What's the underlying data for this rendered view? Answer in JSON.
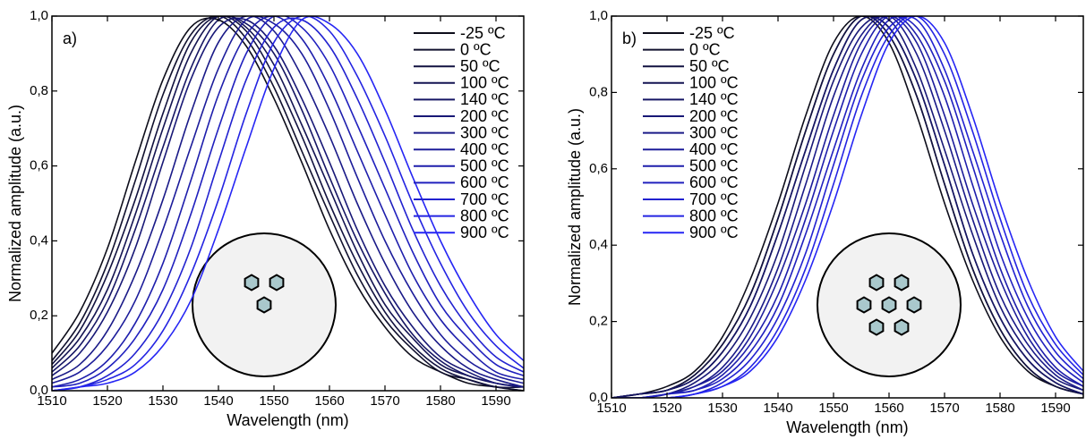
{
  "chart_data": [
    {
      "type": "line",
      "panel_label": "a)",
      "xlabel": "Wavelength (nm)",
      "ylabel": "Normalized amplitude (a.u.)",
      "x": [
        1510,
        1515,
        1520,
        1525,
        1530,
        1535,
        1540,
        1545,
        1550,
        1555,
        1560,
        1565,
        1570,
        1575,
        1580,
        1585,
        1590,
        1595
      ],
      "xlim": [
        1510,
        1595
      ],
      "xticks": [
        1510,
        1520,
        1530,
        1540,
        1550,
        1560,
        1570,
        1580,
        1590
      ],
      "ylim": [
        0,
        1
      ],
      "yticks": [
        {
          "value": 0,
          "label": "0,0"
        },
        {
          "value": 0.2,
          "label": "0,2"
        },
        {
          "value": 0.4,
          "label": "0,4"
        },
        {
          "value": 0.6,
          "label": "0,6"
        },
        {
          "value": 0.8,
          "label": "0,8"
        },
        {
          "value": 1,
          "label": "1,0"
        }
      ],
      "series": [
        {
          "name": "-25 ºC",
          "color": "#0d0d1a",
          "values": [
            0.1,
            0.21,
            0.38,
            0.61,
            0.83,
            0.97,
            0.99,
            0.92,
            0.78,
            0.61,
            0.43,
            0.28,
            0.17,
            0.09,
            0.05,
            0.02,
            0.01,
            0.0
          ]
        },
        {
          "name": "0 ºC",
          "color": "#10102e",
          "values": [
            0.08,
            0.18,
            0.34,
            0.56,
            0.79,
            0.95,
            1.0,
            0.94,
            0.81,
            0.64,
            0.47,
            0.31,
            0.19,
            0.11,
            0.05,
            0.03,
            0.01,
            0.0
          ]
        },
        {
          "name": "50 ºC",
          "color": "#121240",
          "values": [
            0.07,
            0.16,
            0.31,
            0.51,
            0.74,
            0.93,
            1.0,
            0.96,
            0.84,
            0.68,
            0.5,
            0.34,
            0.21,
            0.12,
            0.06,
            0.03,
            0.01,
            0.01
          ]
        },
        {
          "name": "100 ºC",
          "color": "#141452",
          "values": [
            0.06,
            0.14,
            0.27,
            0.47,
            0.7,
            0.9,
            1.0,
            0.97,
            0.87,
            0.71,
            0.54,
            0.37,
            0.23,
            0.14,
            0.07,
            0.04,
            0.02,
            0.01
          ]
        },
        {
          "name": "140 ºC",
          "color": "#161664",
          "values": [
            0.05,
            0.12,
            0.24,
            0.43,
            0.65,
            0.86,
            0.99,
            0.98,
            0.9,
            0.75,
            0.57,
            0.4,
            0.26,
            0.15,
            0.08,
            0.04,
            0.02,
            0.01
          ]
        },
        {
          "name": "200 ºC",
          "color": "#181876",
          "values": [
            0.04,
            0.1,
            0.21,
            0.38,
            0.61,
            0.83,
            0.97,
            0.99,
            0.92,
            0.78,
            0.61,
            0.43,
            0.28,
            0.17,
            0.09,
            0.05,
            0.02,
            0.01
          ]
        },
        {
          "name": "300 ºC",
          "color": "#1a1a88",
          "values": [
            0.03,
            0.07,
            0.16,
            0.31,
            0.51,
            0.74,
            0.93,
            1.0,
            0.96,
            0.84,
            0.68,
            0.5,
            0.34,
            0.21,
            0.12,
            0.06,
            0.03,
            0.01
          ]
        },
        {
          "name": "400 ºC",
          "color": "#1c1c9a",
          "values": [
            0.02,
            0.05,
            0.12,
            0.24,
            0.43,
            0.65,
            0.86,
            0.99,
            0.98,
            0.9,
            0.75,
            0.57,
            0.4,
            0.26,
            0.15,
            0.08,
            0.04,
            0.02
          ]
        },
        {
          "name": "500 ºC",
          "color": "#1e1eac",
          "values": [
            0.01,
            0.03,
            0.08,
            0.18,
            0.34,
            0.56,
            0.79,
            0.95,
            1.0,
            0.94,
            0.81,
            0.64,
            0.47,
            0.31,
            0.19,
            0.11,
            0.05,
            0.03
          ]
        },
        {
          "name": "600 ºC",
          "color": "#2020be",
          "values": [
            0.01,
            0.02,
            0.06,
            0.14,
            0.27,
            0.47,
            0.7,
            0.9,
            1.0,
            0.97,
            0.87,
            0.71,
            0.54,
            0.37,
            0.23,
            0.14,
            0.07,
            0.04
          ]
        },
        {
          "name": "700 ºC",
          "color": "#2222d0",
          "values": [
            0.0,
            0.01,
            0.04,
            0.1,
            0.21,
            0.38,
            0.61,
            0.83,
            0.97,
            0.99,
            0.92,
            0.78,
            0.61,
            0.43,
            0.28,
            0.17,
            0.09,
            0.05
          ]
        },
        {
          "name": "800 ºC",
          "color": "#2424e2",
          "values": [
            0.0,
            0.01,
            0.03,
            0.07,
            0.16,
            0.31,
            0.51,
            0.74,
            0.93,
            1.0,
            0.96,
            0.84,
            0.68,
            0.5,
            0.34,
            0.21,
            0.12,
            0.06
          ]
        },
        {
          "name": "900 ºC",
          "color": "#2626f4",
          "values": [
            0.0,
            0.01,
            0.02,
            0.05,
            0.12,
            0.24,
            0.43,
            0.65,
            0.86,
            0.99,
            0.98,
            0.9,
            0.75,
            0.57,
            0.4,
            0.26,
            0.15,
            0.08
          ]
        }
      ]
    },
    {
      "type": "line",
      "panel_label": "b)",
      "xlabel": "Wavelength (nm)",
      "ylabel": "Normalized amplitude (a.u.)",
      "x": [
        1510,
        1515,
        1520,
        1525,
        1530,
        1535,
        1540,
        1545,
        1550,
        1555,
        1560,
        1565,
        1570,
        1575,
        1580,
        1585,
        1590,
        1595
      ],
      "xlim": [
        1510,
        1595
      ],
      "xticks": [
        1510,
        1520,
        1530,
        1540,
        1550,
        1560,
        1570,
        1580,
        1590
      ],
      "ylim": [
        0,
        1
      ],
      "yticks": [
        {
          "value": 0,
          "label": "0,0"
        },
        {
          "value": 0.2,
          "label": "0,2"
        },
        {
          "value": 0.4,
          "label": "0,4"
        },
        {
          "value": 0.6,
          "label": "0,6"
        },
        {
          "value": 0.8,
          "label": "0,8"
        },
        {
          "value": 1,
          "label": "1,0"
        }
      ],
      "series": [
        {
          "name": "-25 ºC",
          "color": "#0d0d1a",
          "values": [
            0.0,
            0.01,
            0.03,
            0.07,
            0.16,
            0.31,
            0.51,
            0.74,
            0.93,
            1.0,
            0.93,
            0.74,
            0.51,
            0.31,
            0.16,
            0.07,
            0.03,
            0.01
          ]
        },
        {
          "name": "0 ºC",
          "color": "#10102e",
          "values": [
            0.0,
            0.01,
            0.02,
            0.06,
            0.14,
            0.27,
            0.47,
            0.7,
            0.9,
            1.0,
            0.95,
            0.79,
            0.56,
            0.34,
            0.18,
            0.08,
            0.03,
            0.01
          ]
        },
        {
          "name": "50 ºC",
          "color": "#121240",
          "values": [
            0.0,
            0.01,
            0.02,
            0.06,
            0.14,
            0.27,
            0.47,
            0.7,
            0.9,
            1.0,
            0.95,
            0.79,
            0.56,
            0.34,
            0.18,
            0.08,
            0.03,
            0.01
          ]
        },
        {
          "name": "100 ºC",
          "color": "#141452",
          "values": [
            0.0,
            0.01,
            0.02,
            0.05,
            0.12,
            0.24,
            0.43,
            0.65,
            0.86,
            0.99,
            0.97,
            0.83,
            0.61,
            0.38,
            0.21,
            0.1,
            0.04,
            0.01
          ]
        },
        {
          "name": "140 ºC",
          "color": "#161664",
          "values": [
            0.0,
            0.01,
            0.02,
            0.05,
            0.12,
            0.24,
            0.43,
            0.65,
            0.86,
            0.99,
            0.97,
            0.83,
            0.61,
            0.38,
            0.21,
            0.1,
            0.04,
            0.01
          ]
        },
        {
          "name": "200 ºC",
          "color": "#181876",
          "values": [
            0.0,
            0.0,
            0.01,
            0.04,
            0.1,
            0.21,
            0.38,
            0.61,
            0.83,
            0.97,
            0.99,
            0.86,
            0.65,
            0.43,
            0.24,
            0.12,
            0.05,
            0.02
          ]
        },
        {
          "name": "300 ºC",
          "color": "#1a1a88",
          "values": [
            0.0,
            0.0,
            0.01,
            0.03,
            0.08,
            0.18,
            0.34,
            0.56,
            0.79,
            0.95,
            1.0,
            0.9,
            0.7,
            0.47,
            0.27,
            0.14,
            0.06,
            0.02
          ]
        },
        {
          "name": "400 ºC",
          "color": "#1c1c9a",
          "values": [
            0.0,
            0.0,
            0.01,
            0.03,
            0.07,
            0.16,
            0.31,
            0.51,
            0.74,
            0.93,
            1.0,
            0.93,
            0.74,
            0.51,
            0.31,
            0.16,
            0.07,
            0.03
          ]
        },
        {
          "name": "500 ºC",
          "color": "#1e1eac",
          "values": [
            0.0,
            0.0,
            0.01,
            0.02,
            0.06,
            0.14,
            0.27,
            0.47,
            0.7,
            0.9,
            1.0,
            0.95,
            0.79,
            0.56,
            0.34,
            0.18,
            0.08,
            0.03
          ]
        },
        {
          "name": "600 ºC",
          "color": "#2020be",
          "values": [
            0.0,
            0.0,
            0.01,
            0.02,
            0.05,
            0.12,
            0.24,
            0.43,
            0.65,
            0.86,
            0.99,
            0.97,
            0.83,
            0.61,
            0.38,
            0.21,
            0.1,
            0.04
          ]
        },
        {
          "name": "700 ºC",
          "color": "#2222d0",
          "values": [
            0.0,
            0.0,
            0.0,
            0.01,
            0.04,
            0.1,
            0.21,
            0.38,
            0.61,
            0.83,
            0.97,
            0.99,
            0.86,
            0.65,
            0.43,
            0.24,
            0.12,
            0.05
          ]
        },
        {
          "name": "800 ºC",
          "color": "#2424e2",
          "values": [
            0.0,
            0.0,
            0.0,
            0.01,
            0.03,
            0.08,
            0.18,
            0.34,
            0.56,
            0.79,
            0.95,
            1.0,
            0.9,
            0.7,
            0.47,
            0.27,
            0.14,
            0.06
          ]
        },
        {
          "name": "900 ºC",
          "color": "#2626f4",
          "values": [
            0.0,
            0.0,
            0.0,
            0.01,
            0.03,
            0.07,
            0.16,
            0.31,
            0.51,
            0.74,
            0.93,
            1.0,
            0.93,
            0.74,
            0.51,
            0.31,
            0.16,
            0.07
          ]
        }
      ]
    }
  ]
}
